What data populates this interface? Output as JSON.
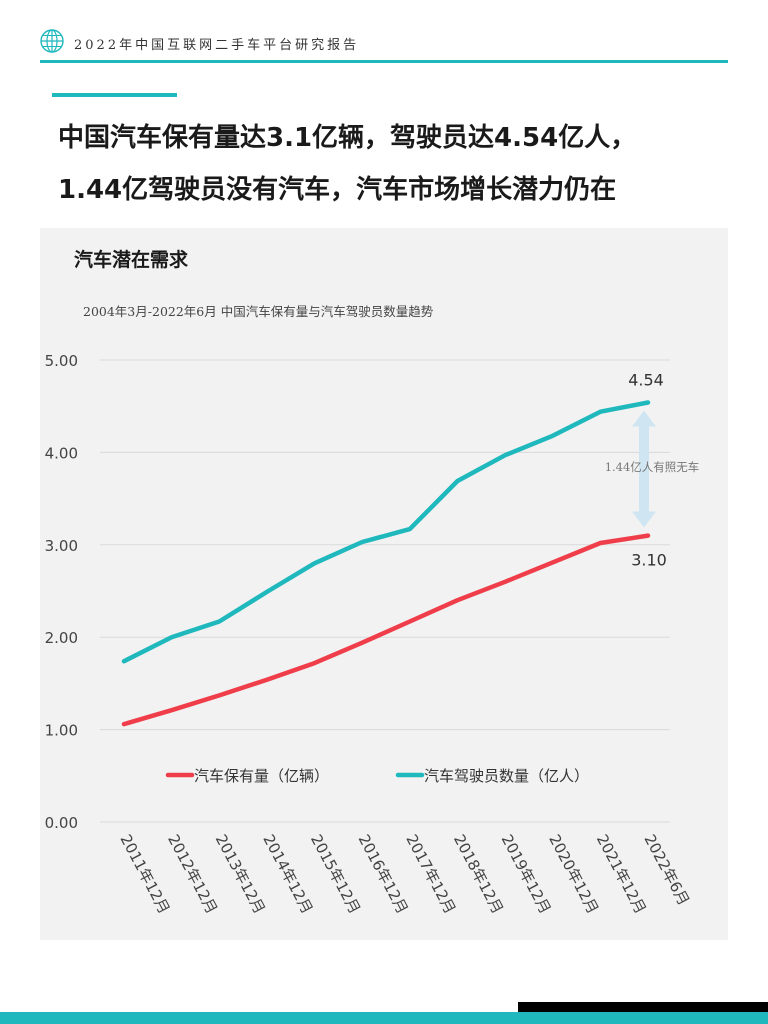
{
  "header": {
    "title": "2022年中国互联网二手车平台研究报告",
    "logo_icon": "globe-icon"
  },
  "headline": {
    "line1": "中国汽车保有量达3.1亿辆，驾驶员达4.54亿人，",
    "line2": "1.44亿驾驶员没有汽车，汽车市场增长潜力仍在"
  },
  "panel": {
    "title": "汽车潜在需求"
  },
  "chart_data": {
    "type": "line",
    "title": "",
    "subtitle": "2004年3月-2022年6月 中国汽车保有量与汽车驾驶员数量趋势",
    "xlabel": "",
    "ylabel": "",
    "ylim": [
      0,
      5
    ],
    "yticks": [
      "0.00",
      "1.00",
      "2.00",
      "3.00",
      "4.00",
      "5.00"
    ],
    "grid": true,
    "legend_position": "inside-bottom",
    "categories": [
      "2011年12月",
      "2012年12月",
      "2013年12月",
      "2014年12月",
      "2015年12月",
      "2016年12月",
      "2017年12月",
      "2018年12月",
      "2019年12月",
      "2020年12月",
      "2021年12月",
      "2022年6月"
    ],
    "series": [
      {
        "name": "汽车保有量（亿辆）",
        "color": "#ef3e4a",
        "values": [
          1.06,
          1.21,
          1.37,
          1.54,
          1.72,
          1.94,
          2.17,
          2.4,
          2.6,
          2.81,
          3.02,
          3.1
        ]
      },
      {
        "name": "汽车驾驶员数量（亿人）",
        "color": "#1fb8bd",
        "values": [
          1.74,
          2.0,
          2.17,
          2.49,
          2.8,
          3.03,
          3.17,
          3.69,
          3.97,
          4.18,
          4.44,
          4.54
        ]
      }
    ],
    "annotations": {
      "end_label_drivers": "4.54",
      "end_label_cars": "3.10",
      "gap_label": "1.44亿人有照无车",
      "gap_arrow_color": "#cfe6f2"
    }
  },
  "footer": {
    "bar_black": "#000000",
    "bar_teal": "#1fb8bd"
  }
}
